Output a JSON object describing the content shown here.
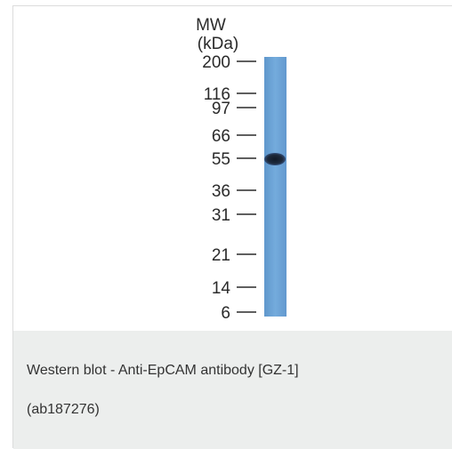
{
  "figure": {
    "header_line1": "MW",
    "header_line2": "(kDa)",
    "markers": [
      {
        "label": "200",
        "kda": 200
      },
      {
        "label": "116",
        "kda": 116
      },
      {
        "label": "97",
        "kda": 97
      },
      {
        "label": "66",
        "kda": 66
      },
      {
        "label": "55",
        "kda": 55
      },
      {
        "label": "36",
        "kda": 36
      },
      {
        "label": "31",
        "kda": 31
      },
      {
        "label": "21",
        "kda": 21
      },
      {
        "label": "14",
        "kda": 14
      },
      {
        "label": "6",
        "kda": 6
      }
    ],
    "band": {
      "kda": 55
    },
    "colors": {
      "lane": "#6fa6d8",
      "band": "#1e2a3c",
      "text": "#2a2a2a"
    }
  },
  "caption": {
    "line1": "Western blot - Anti-EpCAM antibody [GZ-1]",
    "line2": "(ab187276)"
  }
}
